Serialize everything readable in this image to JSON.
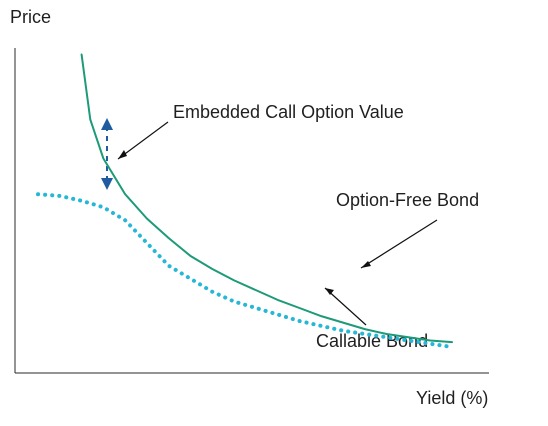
{
  "chart_data": {
    "type": "line",
    "xlabel": "Yield (%)",
    "ylabel": "Price",
    "annotations": {
      "embedded_call": "Embedded Call Option Value",
      "option_free": "Option-Free Bond",
      "callable": "Callable Bond"
    },
    "series": [
      {
        "name": "Option-Free Bond",
        "style": "solid",
        "color": "#1d9a78",
        "points": [
          [
            0.1,
            0.98
          ],
          [
            0.12,
            0.78
          ],
          [
            0.15,
            0.66
          ],
          [
            0.2,
            0.55
          ],
          [
            0.25,
            0.475
          ],
          [
            0.3,
            0.415
          ],
          [
            0.35,
            0.36
          ],
          [
            0.4,
            0.32
          ],
          [
            0.45,
            0.285
          ],
          [
            0.5,
            0.255
          ],
          [
            0.55,
            0.225
          ],
          [
            0.6,
            0.2
          ],
          [
            0.65,
            0.175
          ],
          [
            0.7,
            0.155
          ],
          [
            0.75,
            0.135
          ],
          [
            0.8,
            0.12
          ],
          [
            0.85,
            0.11
          ],
          [
            0.9,
            0.1
          ],
          [
            0.95,
            0.095
          ]
        ]
      },
      {
        "name": "Callable Bond",
        "style": "dotted",
        "color": "#27b7d6",
        "points": [
          [
            0.0,
            0.55
          ],
          [
            0.05,
            0.545
          ],
          [
            0.1,
            0.53
          ],
          [
            0.15,
            0.51
          ],
          [
            0.2,
            0.47
          ],
          [
            0.25,
            0.4
          ],
          [
            0.3,
            0.33
          ],
          [
            0.35,
            0.29
          ],
          [
            0.4,
            0.25
          ],
          [
            0.45,
            0.22
          ],
          [
            0.5,
            0.2
          ],
          [
            0.55,
            0.18
          ],
          [
            0.6,
            0.16
          ],
          [
            0.65,
            0.145
          ],
          [
            0.7,
            0.13
          ],
          [
            0.75,
            0.12
          ],
          [
            0.8,
            0.11
          ],
          [
            0.85,
            0.1
          ],
          [
            0.9,
            0.09
          ],
          [
            0.95,
            0.08
          ]
        ]
      }
    ],
    "grid": false,
    "legend": "none",
    "accent_colors": {
      "option_free": "#1d9a78",
      "callable": "#27b7d6",
      "arrow_blue": "#1f5b9f"
    }
  }
}
